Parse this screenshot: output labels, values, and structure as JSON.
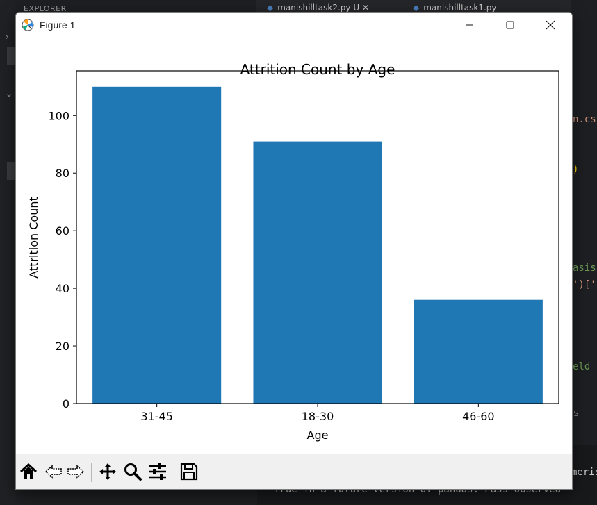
{
  "background": {
    "explorer_label": "EXPLORER",
    "tabs": [
      {
        "label": "manishilltask2.py U"
      },
      {
        "label": "manishilltask1.py"
      }
    ],
    "code_fragments": [
      {
        "text": "n.cs",
        "color": "#ce9178"
      },
      {
        "text": ")",
        "color": "#ffd700"
      },
      {
        "text": "asis",
        "color": "#6a9955"
      },
      {
        "text": "')['",
        "color": "#ce9178"
      },
      {
        "text": "eld",
        "color": "#6a9955"
      }
    ],
    "panel_tab": "RTS",
    "terminal_lines": [
      "meris",
      "True in a future version of pandas. Pass observed"
    ]
  },
  "window": {
    "title": "Figure 1",
    "minimize_icon": "minimize-icon",
    "maximize_icon": "maximize-icon",
    "close_icon": "close-icon"
  },
  "toolbar": {
    "buttons": [
      {
        "name": "home-button",
        "icon": "home-icon"
      },
      {
        "name": "back-button",
        "icon": "back-arrow-icon"
      },
      {
        "name": "forward-button",
        "icon": "forward-arrow-icon"
      },
      {
        "name": "pan-button",
        "icon": "move-icon"
      },
      {
        "name": "zoom-button",
        "icon": "magnifier-icon"
      },
      {
        "name": "configure-subplots-button",
        "icon": "sliders-icon"
      },
      {
        "name": "save-button",
        "icon": "floppy-disk-icon"
      }
    ]
  },
  "chart_data": {
    "type": "bar",
    "title": "Attrition Count by Age",
    "xlabel": "Age",
    "ylabel": "Attrition Count",
    "categories": [
      "31-45",
      "18-30",
      "46-60"
    ],
    "values": [
      110,
      91,
      36
    ],
    "ylim": [
      0,
      115.5
    ],
    "yticks": [
      0,
      20,
      40,
      60,
      80,
      100
    ],
    "bar_color": "#1f77b4",
    "grid": false,
    "legend": "none"
  }
}
